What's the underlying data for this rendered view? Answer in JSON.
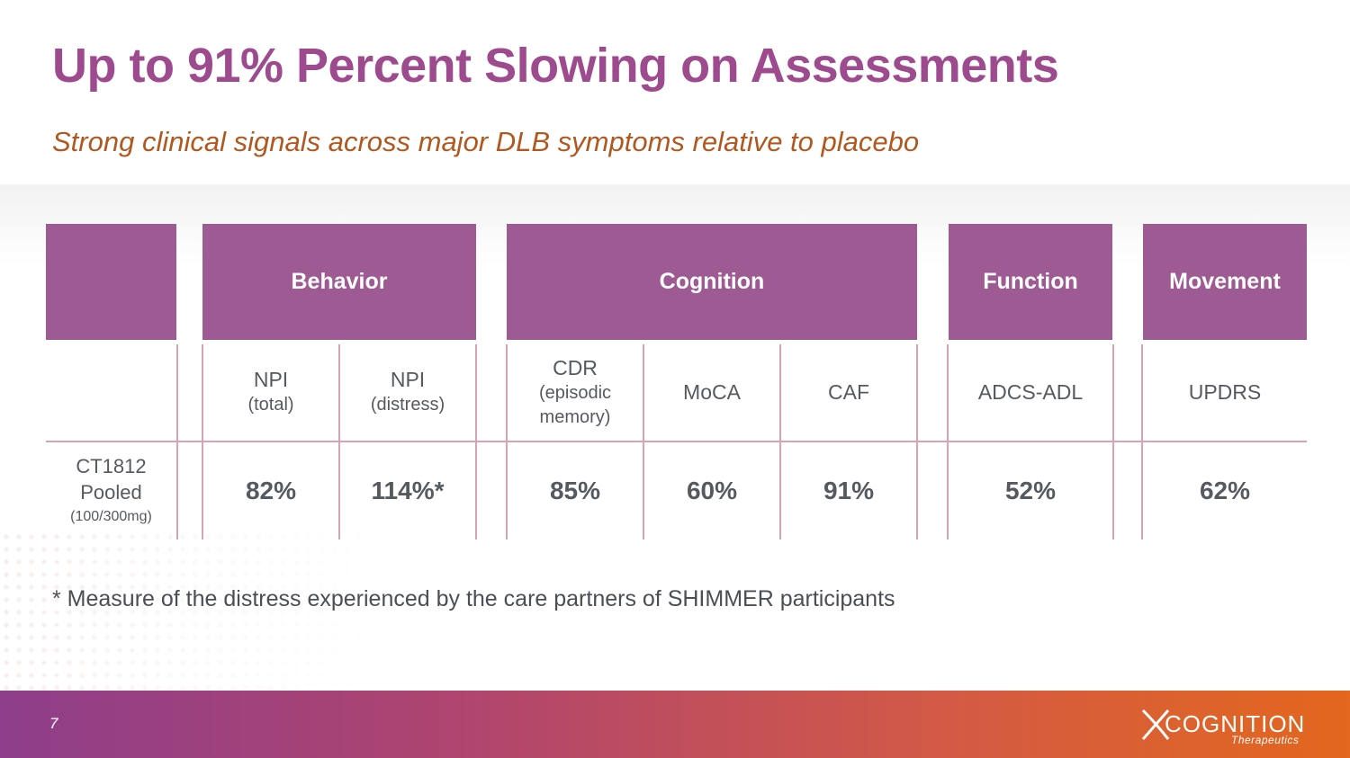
{
  "title": "Up to 91% Percent Slowing on Assessments",
  "subtitle": "Strong clinical signals across major DLB symptoms relative to placebo",
  "table": {
    "groups": [
      "Behavior",
      "Cognition",
      "Function",
      "Movement"
    ],
    "measures": {
      "npi_total": {
        "name": "NPI",
        "sub": "(total)"
      },
      "npi_distress": {
        "name": "NPI",
        "sub": "(distress)"
      },
      "cdr": {
        "name": "CDR",
        "sub1": "(episodic",
        "sub2": "memory)"
      },
      "moca": {
        "name": "MoCA"
      },
      "caf": {
        "name": "CAF"
      },
      "adcs": {
        "name": "ADCS-ADL"
      },
      "updrs": {
        "name": "UPDRS"
      }
    },
    "row": {
      "label1": "CT1812",
      "label2": "Pooled",
      "label3": "(100/300mg)",
      "values": [
        "82%",
        "114%*",
        "85%",
        "60%",
        "91%",
        "52%",
        "62%"
      ]
    }
  },
  "footnote": "* Measure of the distress experienced by the care partners of SHIMMER participants",
  "footer": {
    "page_number": "7",
    "logo_text": "COGNITION",
    "logo_sub": "Therapeutics"
  },
  "colors": {
    "title": "#9e4a8e",
    "subtitle": "#b0581f",
    "header_fill": "#9e5a93",
    "grid": "#d6a3b6"
  }
}
